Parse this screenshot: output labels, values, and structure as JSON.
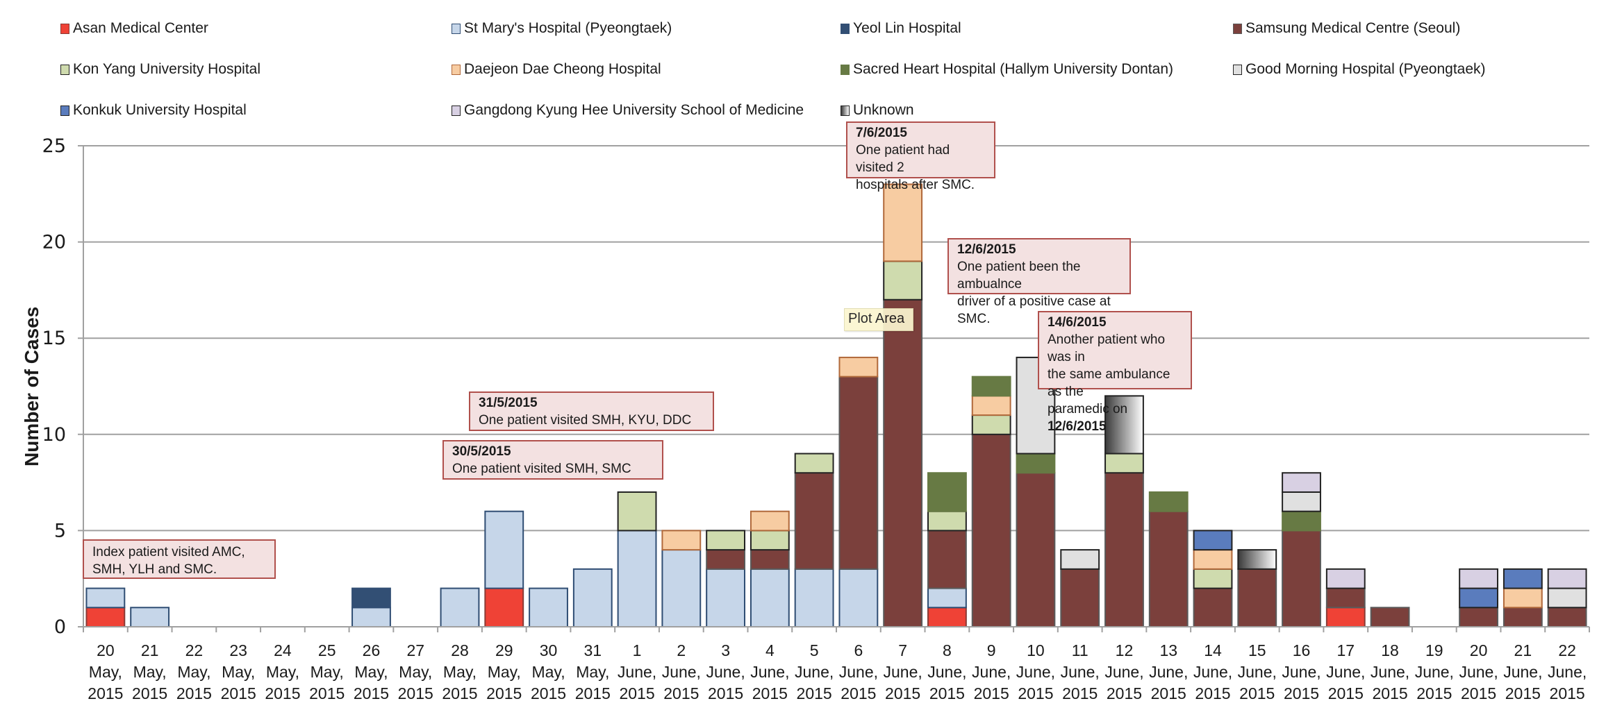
{
  "chart_data": {
    "type": "bar",
    "stacked": true,
    "title": "",
    "xlabel": "",
    "ylabel": "Number of Cases",
    "ylim": [
      0,
      25
    ],
    "yticks": [
      0,
      5,
      10,
      15,
      20,
      25
    ],
    "grid": true,
    "legend_position": "top",
    "categories": [
      [
        "20",
        "May,",
        "2015"
      ],
      [
        "21",
        "May,",
        "2015"
      ],
      [
        "22",
        "May,",
        "2015"
      ],
      [
        "23",
        "May,",
        "2015"
      ],
      [
        "24",
        "May,",
        "2015"
      ],
      [
        "25",
        "May,",
        "2015"
      ],
      [
        "26",
        "May,",
        "2015"
      ],
      [
        "27",
        "May,",
        "2015"
      ],
      [
        "28",
        "May,",
        "2015"
      ],
      [
        "29",
        "May,",
        "2015"
      ],
      [
        "30",
        "May,",
        "2015"
      ],
      [
        "31",
        "May,",
        "2015"
      ],
      [
        "1",
        "June,",
        "2015"
      ],
      [
        "2",
        "June,",
        "2015"
      ],
      [
        "3",
        "June,",
        "2015"
      ],
      [
        "4",
        "June,",
        "2015"
      ],
      [
        "5",
        "June,",
        "2015"
      ],
      [
        "6",
        "June,",
        "2015"
      ],
      [
        "7",
        "June,",
        "2015"
      ],
      [
        "8",
        "June,",
        "2015"
      ],
      [
        "9",
        "June,",
        "2015"
      ],
      [
        "10",
        "June,",
        "2015"
      ],
      [
        "11",
        "June,",
        "2015"
      ],
      [
        "12",
        "June,",
        "2015"
      ],
      [
        "13",
        "June,",
        "2015"
      ],
      [
        "14",
        "June,",
        "2015"
      ],
      [
        "15",
        "June,",
        "2015"
      ],
      [
        "16",
        "June,",
        "2015"
      ],
      [
        "17",
        "June,",
        "2015"
      ],
      [
        "18",
        "June,",
        "2015"
      ],
      [
        "19",
        "June,",
        "2015"
      ],
      [
        "20",
        "June,",
        "2015"
      ],
      [
        "21",
        "June,",
        "2015"
      ],
      [
        "22",
        "June,",
        "2015"
      ]
    ],
    "series": [
      {
        "name": "Asan Medical Center",
        "key": "amc",
        "color": "#ef4236",
        "border": "#8a3b36",
        "values": [
          1,
          0,
          0,
          0,
          0,
          0,
          0,
          0,
          0,
          2,
          0,
          0,
          0,
          0,
          0,
          0,
          0,
          0,
          0,
          1,
          0,
          0,
          0,
          0,
          0,
          0,
          0,
          0,
          1,
          0,
          0,
          0,
          0,
          0
        ]
      },
      {
        "name": "St Mary's Hospital (Pyeongtaek)",
        "key": "smh",
        "color": "#c6d6e9",
        "border": "#2f4d73",
        "values": [
          1,
          1,
          0,
          0,
          0,
          0,
          1,
          0,
          2,
          4,
          2,
          3,
          5,
          4,
          3,
          3,
          3,
          3,
          0,
          1,
          0,
          0,
          0,
          0,
          0,
          0,
          0,
          0,
          0,
          0,
          0,
          0,
          0,
          0
        ]
      },
      {
        "name": "Yeol Lin Hospital",
        "key": "ylh",
        "color": "#324f74",
        "border": "#324f74",
        "values": [
          0,
          0,
          0,
          0,
          0,
          0,
          1,
          0,
          0,
          0,
          0,
          0,
          0,
          0,
          0,
          0,
          0,
          0,
          0,
          0,
          0,
          0,
          0,
          0,
          0,
          0,
          0,
          0,
          0,
          0,
          0,
          0,
          0,
          0
        ]
      },
      {
        "name": "Samsung Medical Centre (Seoul)",
        "key": "smc",
        "color": "#7b403c",
        "border": "#5a5a5a",
        "values": [
          0,
          0,
          0,
          0,
          0,
          0,
          0,
          0,
          0,
          0,
          0,
          0,
          0,
          0,
          1,
          1,
          5,
          10,
          17,
          3,
          10,
          8,
          3,
          8,
          6,
          2,
          3,
          5,
          1,
          1,
          0,
          1,
          1,
          1
        ]
      },
      {
        "name": "Kon Yang University Hospital",
        "key": "kyu",
        "color": "#cfdbae",
        "border": "#222222",
        "values": [
          0,
          0,
          0,
          0,
          0,
          0,
          0,
          0,
          0,
          0,
          0,
          0,
          2,
          0,
          1,
          1,
          1,
          0,
          2,
          1,
          1,
          0,
          0,
          1,
          0,
          1,
          0,
          0,
          0,
          0,
          0,
          0,
          0,
          0
        ]
      },
      {
        "name": "Daejeon Dae Cheong Hospital",
        "key": "ddc",
        "color": "#f7cca2",
        "border": "#b0683a",
        "values": [
          0,
          0,
          0,
          0,
          0,
          0,
          0,
          0,
          0,
          0,
          0,
          0,
          0,
          1,
          0,
          1,
          0,
          1,
          4,
          0,
          1,
          0,
          0,
          0,
          0,
          1,
          0,
          0,
          0,
          0,
          0,
          0,
          1,
          0
        ]
      },
      {
        "name": "Sacred Heart Hospital (Hallym University Dontan)",
        "key": "sh",
        "color": "#677a44",
        "border": "#677a44",
        "values": [
          0,
          0,
          0,
          0,
          0,
          0,
          0,
          0,
          0,
          0,
          0,
          0,
          0,
          0,
          0,
          0,
          0,
          0,
          0,
          2,
          1,
          1,
          0,
          0,
          1,
          0,
          0,
          1,
          0,
          0,
          0,
          0,
          0,
          0
        ]
      },
      {
        "name": "Good Morning Hospital (Pyeongtaek)",
        "key": "gm",
        "color": "#e0e0e0",
        "border": "#222222",
        "values": [
          0,
          0,
          0,
          0,
          0,
          0,
          0,
          0,
          0,
          0,
          0,
          0,
          0,
          0,
          0,
          0,
          0,
          0,
          0,
          0,
          0,
          5,
          1,
          0,
          0,
          0,
          0,
          1,
          0,
          0,
          0,
          0,
          0,
          1
        ]
      },
      {
        "name": "Konkuk University Hospital",
        "key": "kuh",
        "color": "#5a7cbd",
        "border": "#222222",
        "values": [
          0,
          0,
          0,
          0,
          0,
          0,
          0,
          0,
          0,
          0,
          0,
          0,
          0,
          0,
          0,
          0,
          0,
          0,
          0,
          0,
          0,
          0,
          0,
          0,
          0,
          1,
          0,
          0,
          0,
          0,
          0,
          1,
          1,
          0
        ]
      },
      {
        "name": "Gangdong Kyung Hee University School of Medicine",
        "key": "gkh",
        "color": "#d8d0e3",
        "border": "#222222",
        "values": [
          0,
          0,
          0,
          0,
          0,
          0,
          0,
          0,
          0,
          0,
          0,
          0,
          0,
          0,
          0,
          0,
          0,
          0,
          0,
          0,
          0,
          0,
          0,
          0,
          0,
          0,
          0,
          1,
          1,
          0,
          0,
          1,
          0,
          1
        ]
      },
      {
        "name": "Unknown",
        "key": "unk",
        "color": "gradient",
        "border": "#222222",
        "values": [
          0,
          0,
          0,
          0,
          0,
          0,
          0,
          0,
          0,
          0,
          0,
          0,
          0,
          0,
          0,
          0,
          0,
          0,
          0,
          0,
          0,
          0,
          0,
          3,
          0,
          0,
          1,
          0,
          0,
          0,
          0,
          0,
          0,
          0
        ]
      }
    ],
    "totals": [
      2,
      1,
      0,
      0,
      0,
      0,
      2,
      0,
      2,
      6,
      2,
      3,
      7,
      5,
      5,
      6,
      9,
      14,
      23,
      8,
      13,
      14,
      4,
      12,
      7,
      5,
      4,
      8,
      3,
      1,
      0,
      3,
      3,
      3
    ],
    "annotations": [
      {
        "id": "index",
        "title": "",
        "lines": [
          "Index patient visited AMC,",
          "SMH, YLH and SMC."
        ]
      },
      {
        "id": "d30-5",
        "title": "30/5/2015",
        "lines": [
          "One patient visited SMH, SMC"
        ]
      },
      {
        "id": "d31-5",
        "title": "31/5/2015",
        "lines": [
          "One patient visited SMH, KYU, DDC"
        ]
      },
      {
        "id": "d7-6",
        "title": "7/6/2015",
        "lines": [
          "One patient had visited 2",
          "hospitals after SMC."
        ]
      },
      {
        "id": "d12-6",
        "title": "12/6/2015",
        "lines": [
          "One patient been the ambualnce",
          "driver of a positive case at SMC."
        ]
      },
      {
        "id": "d14-6",
        "title": "14/6/2015",
        "lines": [
          "Another patient who was in",
          "the same ambulance as the"
        ],
        "last_line_prefix": "paramedic on ",
        "last_line_bold": "12/6/2015"
      }
    ]
  },
  "tooltip": {
    "text": "Plot Area"
  }
}
